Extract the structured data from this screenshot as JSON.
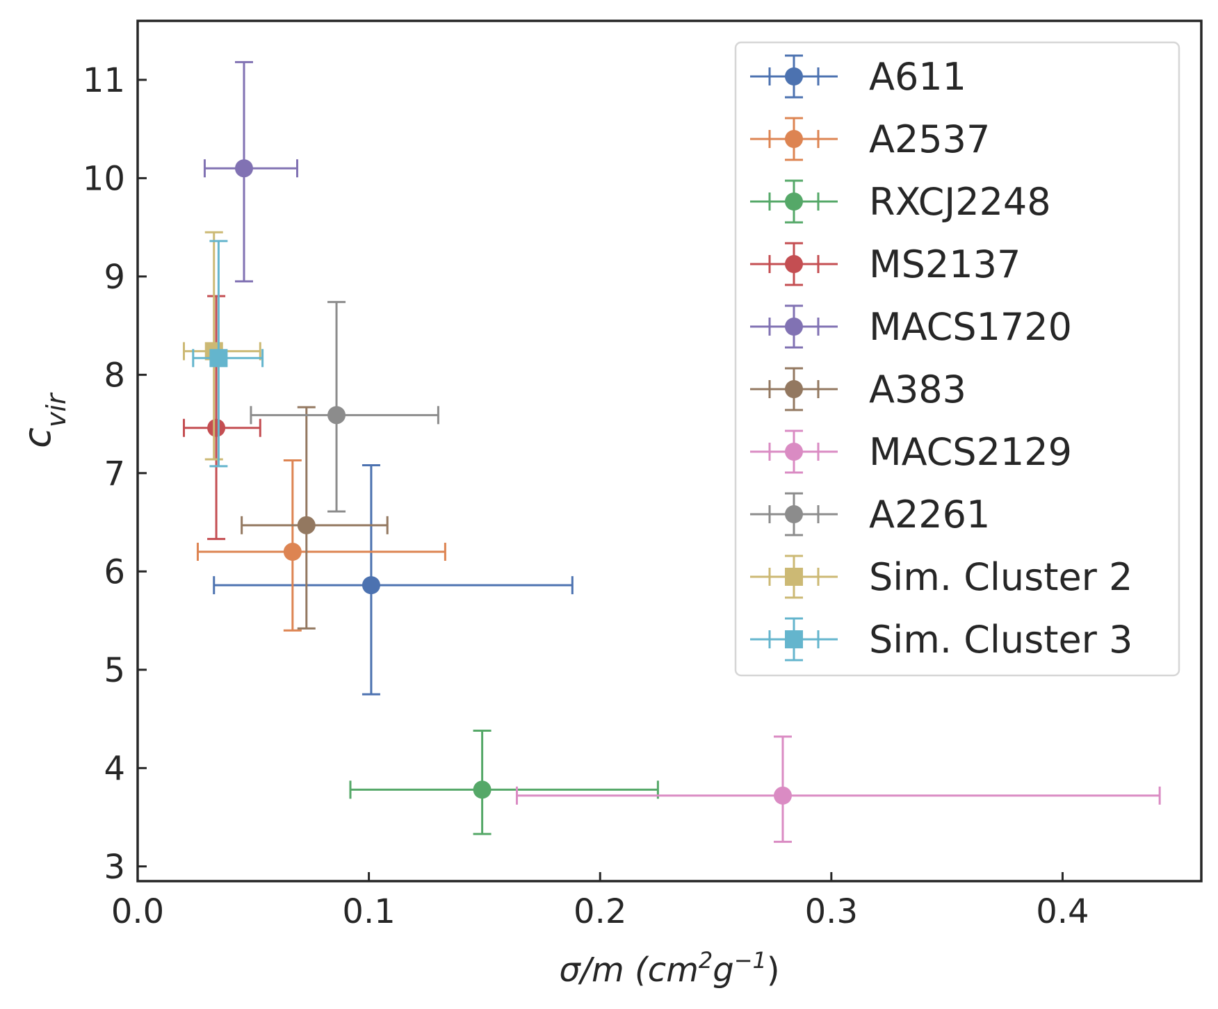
{
  "chart_data": {
    "type": "scatter",
    "title": "",
    "xlabel": "σ/m (cm²g⁻¹)",
    "xlabel_parts": {
      "base": "σ/m (cm",
      "sup1": "2",
      "mid": "g",
      "sup2": "−1",
      "end": ")"
    },
    "ylabel": "c_vir",
    "ylabel_parts": {
      "base": "c",
      "sub": "vir"
    },
    "xlim": [
      0.0,
      0.46
    ],
    "ylim": [
      2.85,
      11.6
    ],
    "xticks": [
      0.0,
      0.1,
      0.2,
      0.3,
      0.4
    ],
    "xtick_labels": [
      "0.0",
      "0.1",
      "0.2",
      "0.3",
      "0.4"
    ],
    "yticks": [
      3,
      4,
      5,
      6,
      7,
      8,
      9,
      10,
      11
    ],
    "ytick_labels": [
      "3",
      "4",
      "5",
      "6",
      "7",
      "8",
      "9",
      "10",
      "11"
    ],
    "grid": false,
    "legend_position": "top-right",
    "series": [
      {
        "name": "A611",
        "color": "#4c72b0",
        "marker": "circle",
        "x": 0.101,
        "y": 5.86,
        "xerr": [
          0.068,
          0.087
        ],
        "yerr": [
          1.11,
          1.22
        ]
      },
      {
        "name": "A2537",
        "color": "#dd8452",
        "marker": "circle",
        "x": 0.067,
        "y": 6.2,
        "xerr": [
          0.041,
          0.066
        ],
        "yerr": [
          0.8,
          0.93
        ]
      },
      {
        "name": "RXCJ2248",
        "color": "#55a868",
        "marker": "circle",
        "x": 0.149,
        "y": 3.78,
        "xerr": [
          0.057,
          0.076
        ],
        "yerr": [
          0.45,
          0.6
        ]
      },
      {
        "name": "MS2137",
        "color": "#c44e52",
        "marker": "circle",
        "x": 0.034,
        "y": 7.46,
        "xerr": [
          0.014,
          0.019
        ],
        "yerr": [
          1.13,
          1.34
        ]
      },
      {
        "name": "MACS1720",
        "color": "#8172b3",
        "marker": "circle",
        "x": 0.046,
        "y": 10.1,
        "xerr": [
          0.017,
          0.023
        ],
        "yerr": [
          1.15,
          1.08
        ]
      },
      {
        "name": "A383",
        "color": "#937860",
        "marker": "circle",
        "x": 0.073,
        "y": 6.47,
        "xerr": [
          0.028,
          0.035
        ],
        "yerr": [
          1.05,
          1.2
        ]
      },
      {
        "name": "MACS2129",
        "color": "#da8bc3",
        "marker": "circle",
        "x": 0.279,
        "y": 3.72,
        "xerr": [
          0.115,
          0.163
        ],
        "yerr": [
          0.47,
          0.6
        ]
      },
      {
        "name": "A2261",
        "color": "#8c8c8c",
        "marker": "circle",
        "x": 0.086,
        "y": 7.59,
        "xerr": [
          0.037,
          0.044
        ],
        "yerr": [
          0.98,
          1.15
        ]
      },
      {
        "name": "Sim. Cluster 2",
        "color": "#ccb974",
        "marker": "square",
        "x": 0.033,
        "y": 8.24,
        "xerr": [
          0.013,
          0.02
        ],
        "yerr": [
          1.1,
          1.21
        ]
      },
      {
        "name": "Sim. Cluster 3",
        "color": "#64b5cd",
        "marker": "square",
        "x": 0.035,
        "y": 8.17,
        "xerr": [
          0.011,
          0.019
        ],
        "yerr": [
          1.1,
          1.19
        ]
      }
    ]
  }
}
